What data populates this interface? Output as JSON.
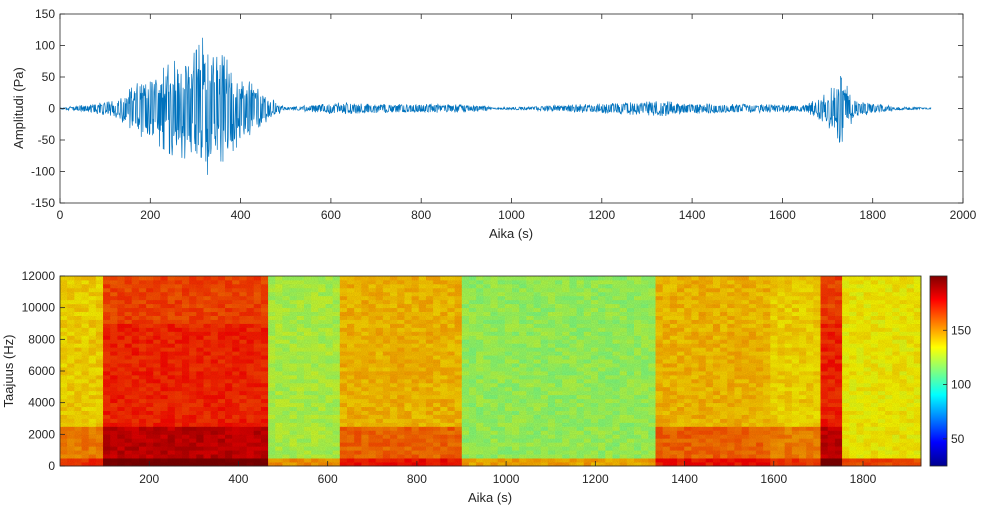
{
  "chart_data": [
    {
      "type": "line",
      "title": "",
      "xlabel": "Aika (s)",
      "ylabel": "Amplitudi (Pa)",
      "xlim": [
        0,
        2000
      ],
      "ylim": [
        -150,
        150
      ],
      "xticks": [
        0,
        200,
        400,
        600,
        800,
        1000,
        1200,
        1400,
        1600,
        1800,
        2000
      ],
      "yticks": [
        -150,
        -100,
        -50,
        0,
        50,
        100,
        150
      ],
      "grid": false,
      "series": [
        {
          "color": "#0072BD",
          "segments_note": "",
          "x": [
            0,
            120,
            180,
            220,
            250,
            280,
            300,
            320,
            340,
            360,
            400,
            440,
            470,
            500,
            630,
            650,
            700,
            800,
            900,
            940,
            960,
            1340,
            1360,
            1400,
            1500,
            1600,
            1650,
            1700,
            1720,
            1730,
            1740,
            1760,
            1800,
            1850,
            1930
          ],
          "envelope": [
            1,
            12,
            45,
            60,
            75,
            80,
            90,
            118,
            80,
            85,
            55,
            30,
            15,
            2,
            10,
            8,
            7,
            7,
            6,
            4,
            1,
            12,
            10,
            8,
            7,
            6,
            5,
            25,
            60,
            70,
            40,
            15,
            8,
            3,
            1
          ]
        }
      ]
    },
    {
      "type": "heatmap",
      "title": "",
      "xlabel": "Aika (s)",
      "ylabel": "Taajuus (Hz)",
      "xlim": [
        0,
        1930
      ],
      "ylim": [
        0,
        12000
      ],
      "xticks": [
        200,
        400,
        600,
        800,
        1000,
        1200,
        1400,
        1600,
        1800
      ],
      "yticks": [
        0,
        2000,
        4000,
        6000,
        8000,
        10000,
        12000
      ],
      "colorbar": {
        "ticks": [
          50,
          100,
          150
        ],
        "range": [
          25,
          200
        ],
        "colormap": "jet",
        "placement": "right"
      },
      "segments": [
        {
          "t0": 0,
          "t1": 100,
          "level": 140
        },
        {
          "t0": 100,
          "t1": 470,
          "level": 172
        },
        {
          "t0": 470,
          "t1": 630,
          "level": 122
        },
        {
          "t0": 630,
          "t1": 900,
          "level": 145
        },
        {
          "t0": 900,
          "t1": 1340,
          "level": 118
        },
        {
          "t0": 1340,
          "t1": 1600,
          "level": 145
        },
        {
          "t0": 1600,
          "t1": 1700,
          "level": 140
        },
        {
          "t0": 1700,
          "t1": 1760,
          "level": 172
        },
        {
          "t0": 1760,
          "t1": 1930,
          "level": 135
        }
      ]
    }
  ]
}
